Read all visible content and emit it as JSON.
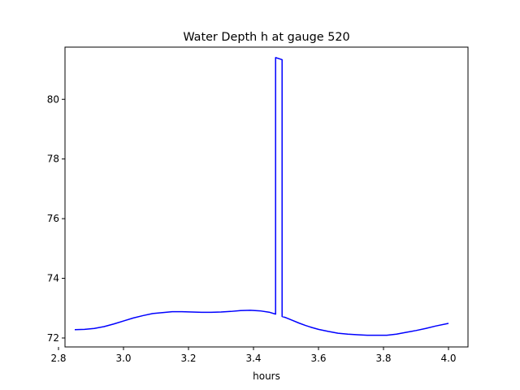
{
  "chart_data": {
    "type": "line",
    "title": "Water Depth h at gauge 520",
    "xlabel": "hours",
    "ylabel": "",
    "xlim": [
      2.82,
      4.06
    ],
    "ylim": [
      71.7,
      81.75
    ],
    "xticks": [
      2.8,
      3.0,
      3.2,
      3.4,
      3.6,
      3.8,
      4.0
    ],
    "xtick_labels": [
      "2.8",
      "3.0",
      "3.2",
      "3.4",
      "3.6",
      "3.8",
      "4.0"
    ],
    "yticks": [
      72,
      74,
      76,
      78,
      80
    ],
    "ytick_labels": [
      "72",
      "74",
      "76",
      "78",
      "80"
    ],
    "grid": false,
    "series": [
      {
        "color": "#0000ff",
        "x": [
          2.85,
          2.88,
          2.91,
          2.94,
          2.97,
          3.0,
          3.03,
          3.06,
          3.09,
          3.12,
          3.15,
          3.18,
          3.21,
          3.24,
          3.27,
          3.3,
          3.33,
          3.36,
          3.39,
          3.42,
          3.45,
          3.468,
          3.468,
          3.488,
          3.488,
          3.5,
          3.52,
          3.54,
          3.56,
          3.58,
          3.6,
          3.63,
          3.66,
          3.69,
          3.72,
          3.75,
          3.78,
          3.81,
          3.84,
          3.87,
          3.9,
          3.93,
          3.96,
          4.0
        ],
        "y": [
          72.28,
          72.29,
          72.32,
          72.38,
          72.47,
          72.57,
          72.67,
          72.75,
          72.82,
          72.85,
          72.88,
          72.88,
          72.87,
          72.86,
          72.86,
          72.87,
          72.89,
          72.92,
          72.93,
          72.91,
          72.86,
          72.8,
          81.4,
          81.33,
          72.72,
          72.68,
          72.59,
          72.5,
          72.42,
          72.35,
          72.29,
          72.22,
          72.16,
          72.13,
          72.11,
          72.09,
          72.09,
          72.09,
          72.13,
          72.19,
          72.25,
          72.32,
          72.4,
          72.49
        ]
      }
    ]
  }
}
